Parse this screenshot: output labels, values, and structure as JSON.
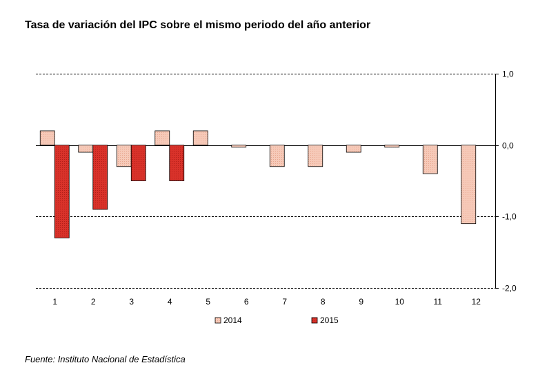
{
  "chart_data": {
    "type": "bar",
    "title": "Tasa de variación del IPC sobre el mismo periodo del año anterior",
    "source": "Fuente: Instituto Nacional de Estadística",
    "categories": [
      "1",
      "2",
      "3",
      "4",
      "5",
      "6",
      "7",
      "8",
      "9",
      "10",
      "11",
      "12"
    ],
    "series": [
      {
        "name": "2014",
        "color": "#f6c9b8",
        "values": [
          0.2,
          -0.1,
          -0.3,
          0.2,
          0.2,
          0.0,
          -0.3,
          -0.3,
          -0.1,
          0.0,
          -0.4,
          -1.1
        ]
      },
      {
        "name": "2015",
        "color": "#d9322a",
        "values": [
          -1.3,
          -0.9,
          -0.5,
          -0.5,
          null,
          null,
          null,
          null,
          null,
          null,
          null,
          null
        ]
      }
    ],
    "ylim": [
      -2.0,
      1.0
    ],
    "yticks": [
      "1,0",
      "0,0",
      "-1,0",
      "-2,0"
    ],
    "ytick_values": [
      1.0,
      0.0,
      -1.0,
      -2.0
    ],
    "grid": true,
    "legend": "bottom"
  }
}
